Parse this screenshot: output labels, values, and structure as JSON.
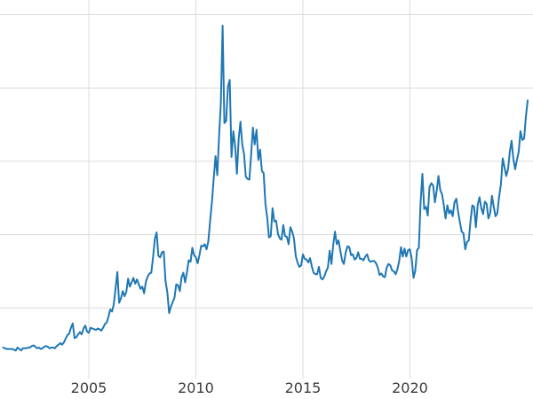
{
  "chart_data": {
    "type": "line",
    "title": "",
    "xlabel": "",
    "ylabel": "",
    "legend": "none",
    "grid": true,
    "line_color": "#1f77b4",
    "line_width": 2,
    "grid_color": "#dcdcdc",
    "tick_label_color": "#3d3d3d",
    "background": "#ffffff",
    "x_start_year": 2001,
    "x_interval_months": 1,
    "xlim": [
      2000.85,
      2025.75
    ],
    "ylim": [
      0,
      52
    ],
    "y_gridlines": [
      10,
      20,
      30,
      40,
      50
    ],
    "x_ticks": [
      {
        "year": 2005,
        "label": "2005"
      },
      {
        "year": 2010,
        "label": "2010"
      },
      {
        "year": 2015,
        "label": "2015"
      },
      {
        "year": 2020,
        "label": "2020"
      }
    ],
    "values": [
      4.6,
      4.5,
      4.4,
      4.4,
      4.4,
      4.4,
      4.3,
      4.2,
      4.6,
      4.4,
      4.2,
      4.5,
      4.5,
      4.5,
      4.6,
      4.6,
      4.8,
      4.9,
      4.7,
      4.5,
      4.6,
      4.4,
      4.5,
      4.7,
      4.8,
      4.7,
      4.5,
      4.6,
      4.6,
      4.5,
      4.8,
      5.0,
      5.2,
      5.0,
      5.3,
      5.8,
      6.3,
      6.5,
      7.3,
      7.9,
      5.9,
      6.0,
      6.4,
      6.7,
      6.4,
      7.2,
      7.6,
      6.8,
      6.6,
      7.3,
      7.2,
      7.1,
      7.0,
      7.2,
      7.1,
      6.9,
      7.3,
      7.8,
      8.0,
      8.8,
      9.8,
      9.5,
      10.5,
      12.7,
      14.9,
      10.7,
      11.3,
      12.3,
      11.6,
      12.2,
      14.0,
      12.9,
      13.5,
      14.1,
      13.3,
      13.9,
      13.2,
      12.6,
      12.9,
      12.0,
      13.6,
      14.3,
      14.7,
      14.8,
      16.9,
      19.4,
      20.3,
      17.1,
      16.9,
      17.6,
      17.7,
      13.7,
      12.1,
      9.3,
      10.2,
      10.8,
      11.4,
      13.2,
      13.1,
      12.3,
      14.2,
      14.8,
      13.5,
      14.8,
      16.5,
      16.3,
      18.2,
      17.2,
      16.9,
      16.1,
      17.2,
      18.5,
      18.4,
      18.7,
      18.0,
      19.1,
      21.8,
      24.5,
      27.7,
      30.7,
      28.1,
      33.4,
      37.9,
      48.5,
      35.2,
      35.5,
      40.2,
      41.1,
      30.6,
      34.1,
      32.1,
      28.3,
      33.1,
      35.4,
      32.3,
      31.0,
      27.9,
      27.6,
      27.5,
      30.9,
      34.6,
      32.3,
      34.3,
      30.2,
      31.6,
      28.7,
      28.4,
      24.2,
      22.3,
      19.6,
      19.8,
      23.6,
      21.8,
      21.9,
      20.1,
      19.5,
      19.3,
      21.3,
      19.8,
      19.7,
      18.7,
      21.0,
      20.4,
      19.5,
      17.1,
      16.2,
      15.6,
      15.8,
      17.3,
      16.7,
      16.6,
      16.2,
      16.8,
      15.7,
      14.8,
      14.6,
      14.6,
      15.6,
      14.1,
      13.9,
      14.3,
      15.0,
      15.5,
      17.8,
      16.0,
      18.6,
      20.4,
      18.7,
      19.2,
      17.8,
      16.5,
      16.0,
      17.6,
      18.4,
      18.3,
      17.2,
      17.3,
      16.6,
      16.8,
      17.6,
      16.7,
      16.7,
      16.5,
      17.0,
      17.3,
      16.5,
      16.3,
      16.4,
      16.4,
      16.1,
      15.5,
      14.5,
      14.7,
      14.3,
      14.2,
      15.5,
      16.0,
      15.8,
      15.1,
      15.0,
      14.6,
      15.3,
      16.4,
      18.3,
      17.0,
      18.1,
      17.0,
      17.9,
      18.0,
      16.7,
      14.1,
      15.1,
      17.9,
      18.2,
      24.5,
      28.3,
      23.5,
      23.8,
      22.6,
      26.5,
      27.0,
      26.7,
      24.4,
      26.0,
      28.0,
      26.1,
      25.5,
      24.0,
      22.2,
      24.0,
      22.9,
      23.3,
      22.5,
      24.4,
      24.9,
      23.1,
      21.7,
      20.4,
      20.2,
      18.0,
      19.0,
      19.2,
      21.9,
      24.0,
      23.8,
      21.0,
      24.1,
      25.1,
      23.6,
      22.8,
      24.5,
      24.2,
      22.2,
      22.9,
      25.3,
      23.8,
      22.5,
      22.9,
      25.1,
      26.9,
      30.4,
      29.2,
      28.0,
      28.9,
      31.3,
      32.8,
      30.3,
      28.9,
      30.2,
      31.3,
      34.1,
      32.9,
      33.1,
      36.1,
      38.3
    ]
  }
}
